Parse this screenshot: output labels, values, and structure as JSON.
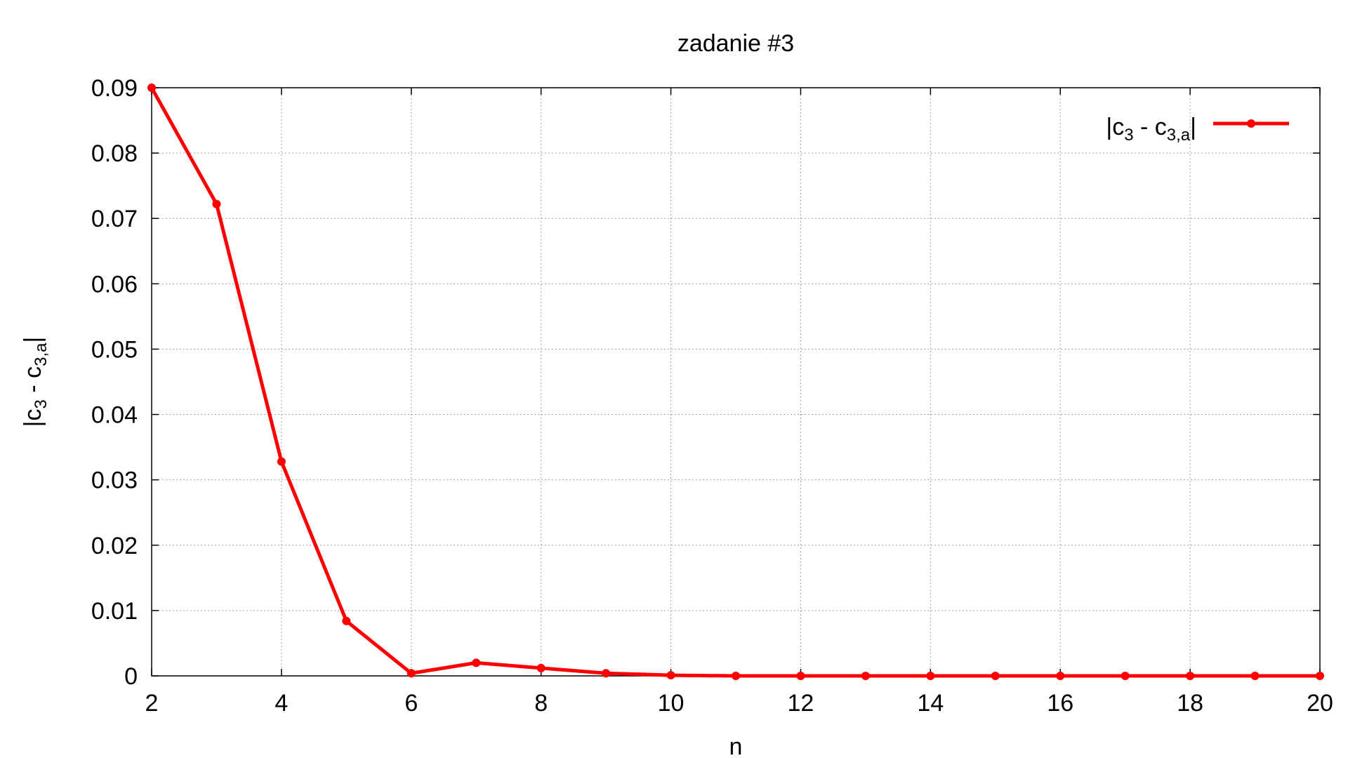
{
  "chart_data": {
    "type": "line",
    "title": "zadanie #3",
    "xlabel": "n",
    "ylabel": "|c3 - c3,a|",
    "xlim": [
      2,
      20
    ],
    "ylim": [
      0,
      0.09
    ],
    "x_ticks": [
      2,
      4,
      6,
      8,
      10,
      12,
      14,
      16,
      18,
      20
    ],
    "y_ticks": [
      "0",
      "0.01",
      "0.02",
      "0.03",
      "0.04",
      "0.05",
      "0.06",
      "0.07",
      "0.08",
      "0.09"
    ],
    "grid": true,
    "legend_position": "top-right",
    "series": [
      {
        "name": "|c3 - c3,a|",
        "color": "#ff0000",
        "marker": "circle",
        "x": [
          2,
          3,
          4,
          5,
          6,
          7,
          8,
          9,
          10,
          11,
          12,
          13,
          14,
          15,
          16,
          17,
          18,
          19,
          20
        ],
        "values": [
          0.09,
          0.0722,
          0.0328,
          0.0084,
          0.0004,
          0.002,
          0.0012,
          0.0004,
          0.0001,
          0,
          0,
          0,
          0,
          0,
          0,
          0,
          0,
          0,
          0
        ]
      }
    ]
  }
}
